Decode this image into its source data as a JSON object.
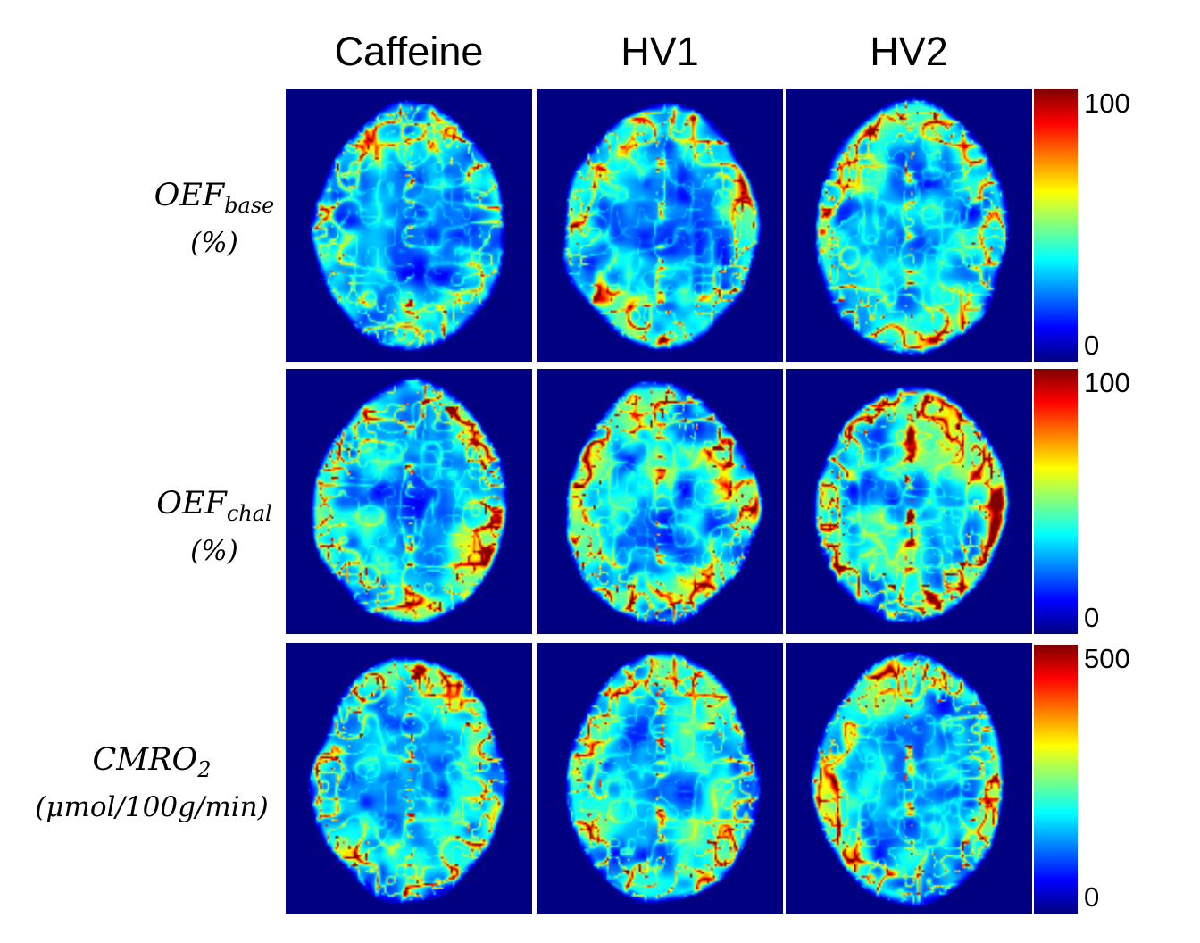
{
  "figure": {
    "columns": [
      {
        "id": "caffeine",
        "label": "Caffeine"
      },
      {
        "id": "hv1",
        "label": "HV1"
      },
      {
        "id": "hv2",
        "label": "HV2"
      }
    ],
    "rows": [
      {
        "id": "oef-base",
        "label_main": "OEF",
        "label_sub": "base",
        "label_unit": "(%)",
        "colorbar": {
          "max": "100",
          "min": "0"
        }
      },
      {
        "id": "oef-chal",
        "label_main": "OEF",
        "label_sub": "chal",
        "label_unit": "(%)",
        "colorbar": {
          "max": "100",
          "min": "0"
        }
      },
      {
        "id": "cmro2",
        "label_main": "CMRO",
        "label_sub": "2",
        "label_unit": "(μmol/100g/min)",
        "colorbar": {
          "max": "500",
          "min": "0"
        }
      }
    ],
    "colormap": {
      "name": "jet",
      "low_to_high_stops": [
        "#000080",
        "#0000ff",
        "#00ffff",
        "#ffff00",
        "#ff0000",
        "#800000"
      ],
      "panel_background": "#000080"
    }
  }
}
